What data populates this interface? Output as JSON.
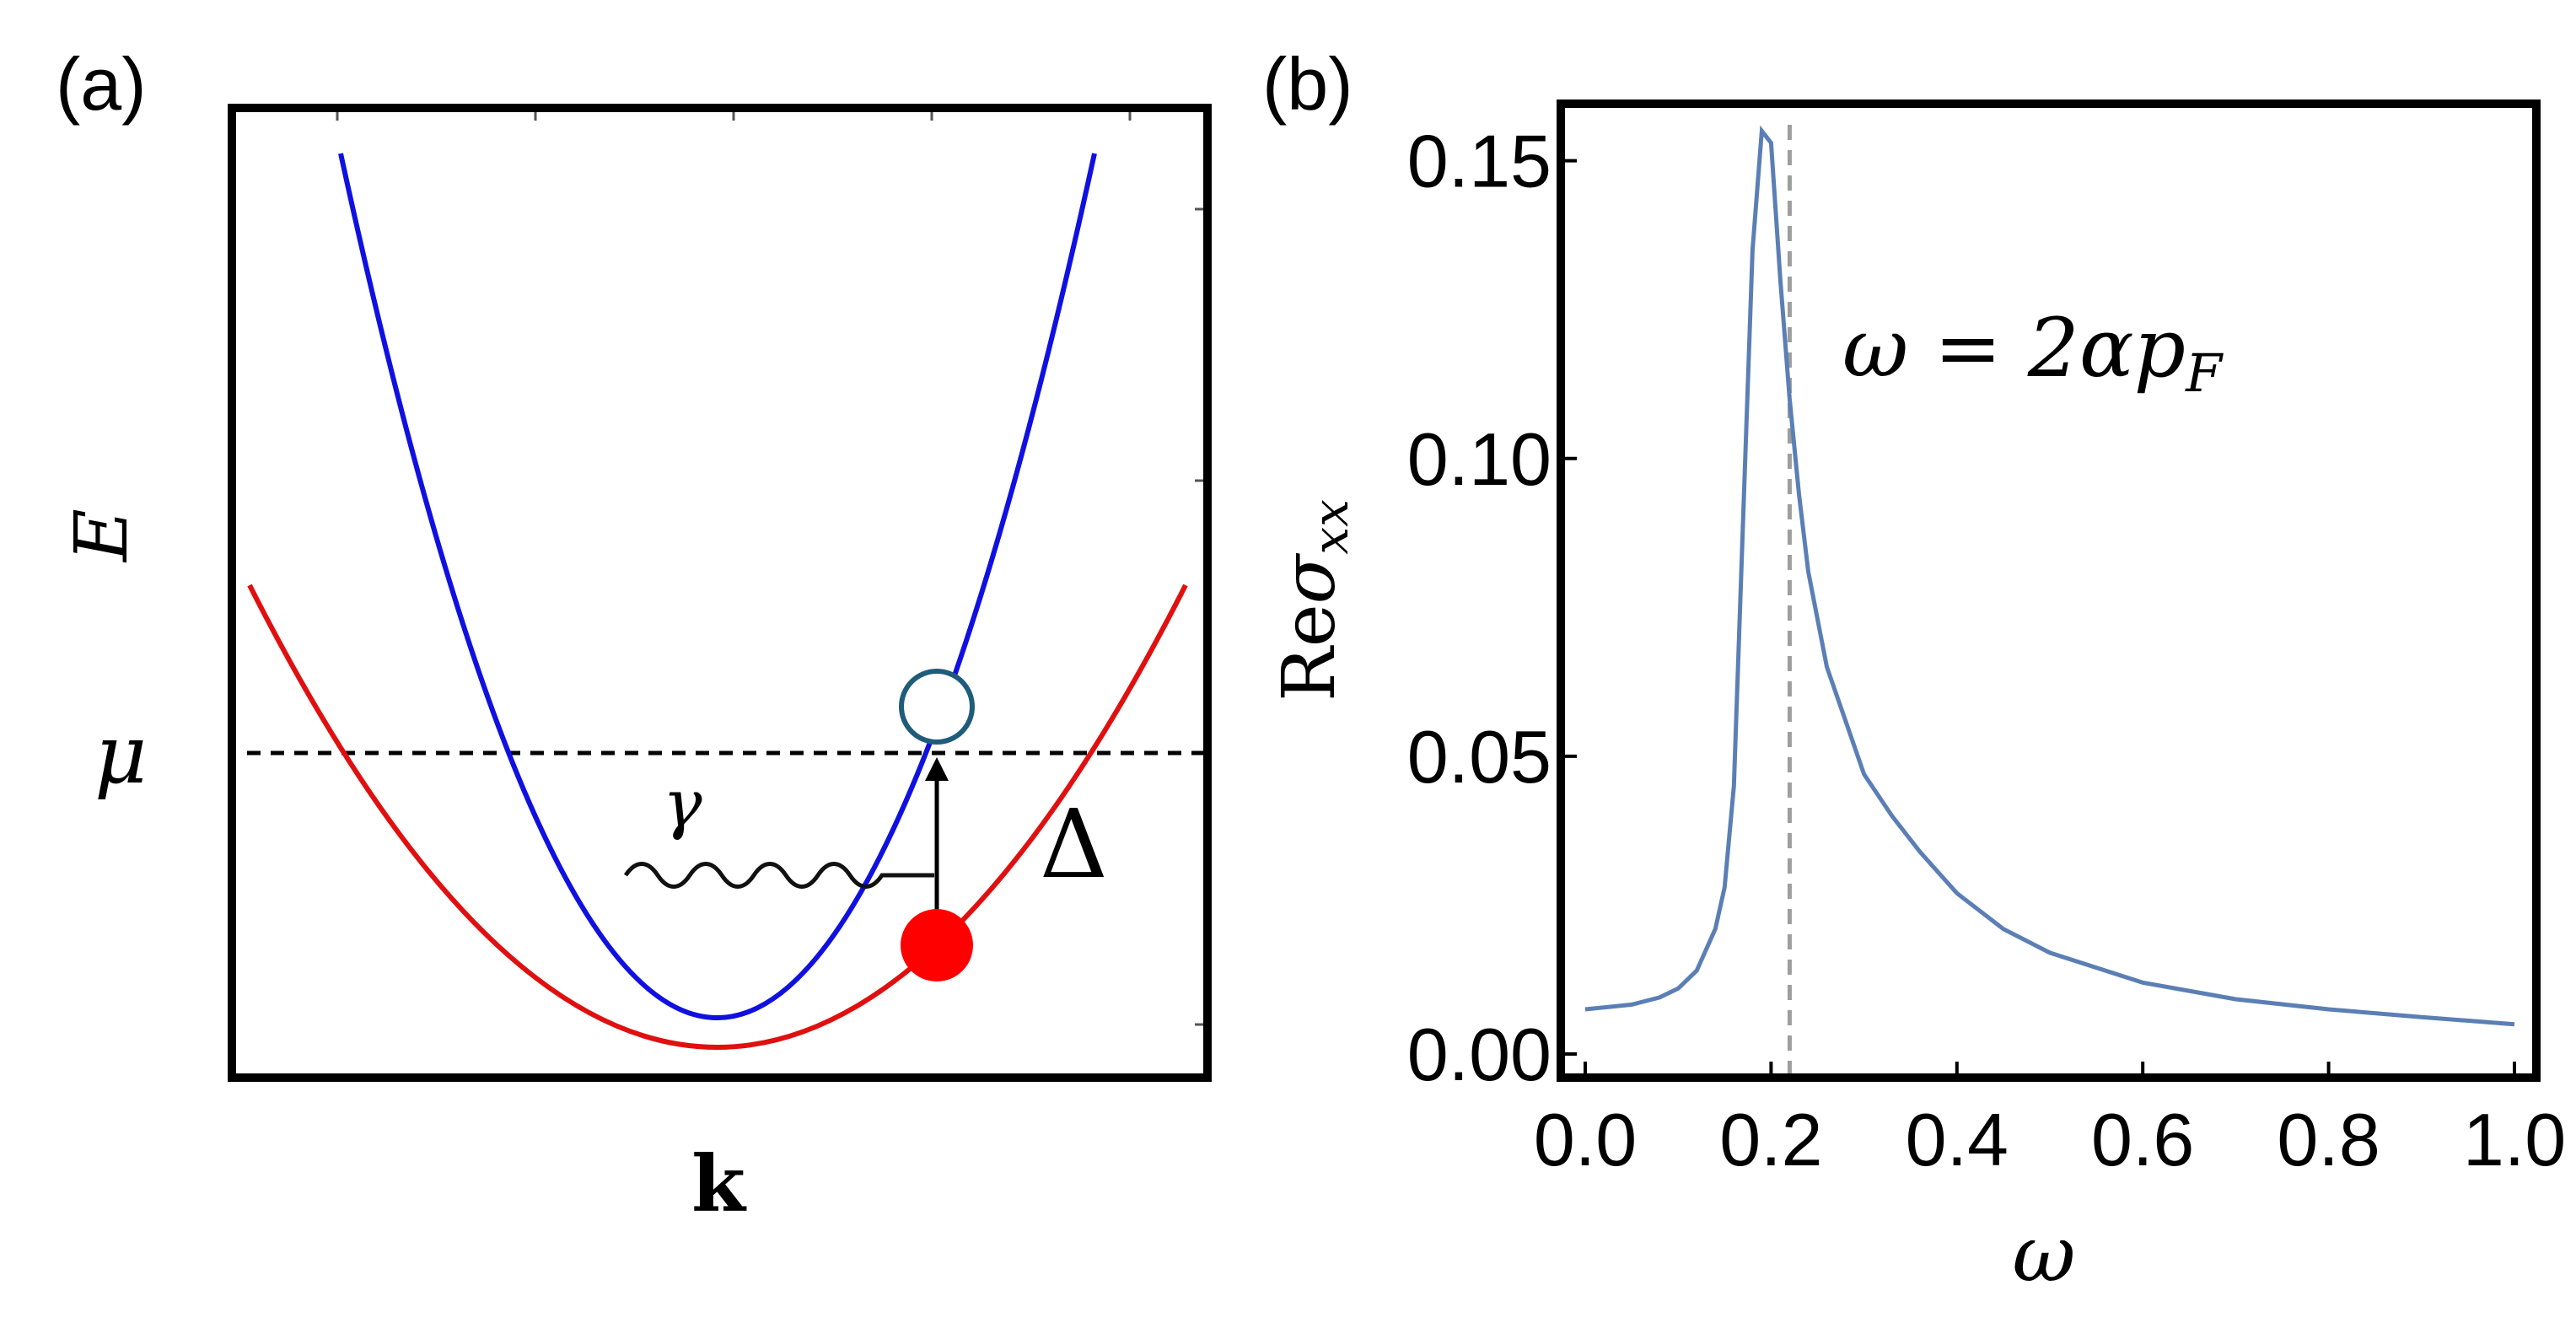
{
  "panels": {
    "a": {
      "label": "(a)",
      "ylabel": "E",
      "xlabel": "k",
      "mu_label": "μ",
      "photon_label": "γ",
      "gap_label": "Δ"
    },
    "b": {
      "label": "(b)",
      "ylabel_prefix": "Re",
      "ylabel_sym": "σ",
      "ylabel_sub": "xx",
      "xlabel": "ω",
      "annotation_lhs": "ω = 2α",
      "annotation_p": "p",
      "annotation_sub": "F"
    }
  },
  "colors": {
    "upper_band": "#1010e0",
    "lower_band": "#e01010",
    "occupied": "#ff0000",
    "hole": "#1f5c7a",
    "curve_b": "#5b7fb5",
    "dashed_b": "#9e9e9e"
  },
  "chart_data": [
    {
      "type": "line",
      "panel": "a",
      "title": "",
      "xlabel": "k",
      "ylabel": "E",
      "series": [
        {
          "name": "",
          "x": [
            -1.0,
            -0.8,
            -0.6,
            -0.4,
            -0.2,
            0.0,
            0.2,
            0.4,
            0.6,
            0.8,
            1.0
          ],
          "y": [
            0.36,
            0.43,
            0.58,
            0.75,
            0.91,
            0.97,
            0.91,
            0.75,
            0.58,
            0.43,
            0.36
          ]
        },
        {
          "name": "",
          "x": [
            -0.785,
            -0.6,
            -0.4,
            -0.2,
            0.0,
            0.2,
            0.4,
            0.6,
            0.785
          ],
          "y": [
            0.09,
            0.38,
            0.66,
            0.86,
            0.935,
            0.86,
            0.66,
            0.38,
            0.09
          ]
        }
      ],
      "markers": {
        "mu_level": 0.6,
        "transition_k": 0.46
      }
    },
    {
      "type": "line",
      "panel": "b",
      "title": "",
      "xlabel": "ω",
      "ylabel": "Reσxx",
      "xlim": [
        0.0,
        1.0
      ],
      "ylim": [
        0.0,
        0.16
      ],
      "xticks": [
        "0.0",
        "0.2",
        "0.4",
        "0.6",
        "0.8",
        "1.0"
      ],
      "yticks": [
        "0.00",
        "0.05",
        "0.10",
        "0.15"
      ],
      "vline_x": 0.22,
      "series": [
        {
          "name": "",
          "x": [
            0.0,
            0.05,
            0.08,
            0.1,
            0.12,
            0.14,
            0.15,
            0.16,
            0.17,
            0.18,
            0.19,
            0.2,
            0.21,
            0.22,
            0.23,
            0.24,
            0.25,
            0.26,
            0.28,
            0.3,
            0.33,
            0.36,
            0.4,
            0.45,
            0.5,
            0.6,
            0.7,
            0.8,
            0.9,
            1.0
          ],
          "y": [
            0.0075,
            0.0083,
            0.0095,
            0.011,
            0.014,
            0.021,
            0.028,
            0.045,
            0.09,
            0.135,
            0.155,
            0.153,
            0.13,
            0.11,
            0.094,
            0.081,
            0.073,
            0.065,
            0.056,
            0.047,
            0.04,
            0.034,
            0.027,
            0.021,
            0.017,
            0.012,
            0.0092,
            0.0075,
            0.0062,
            0.005
          ]
        }
      ]
    }
  ]
}
